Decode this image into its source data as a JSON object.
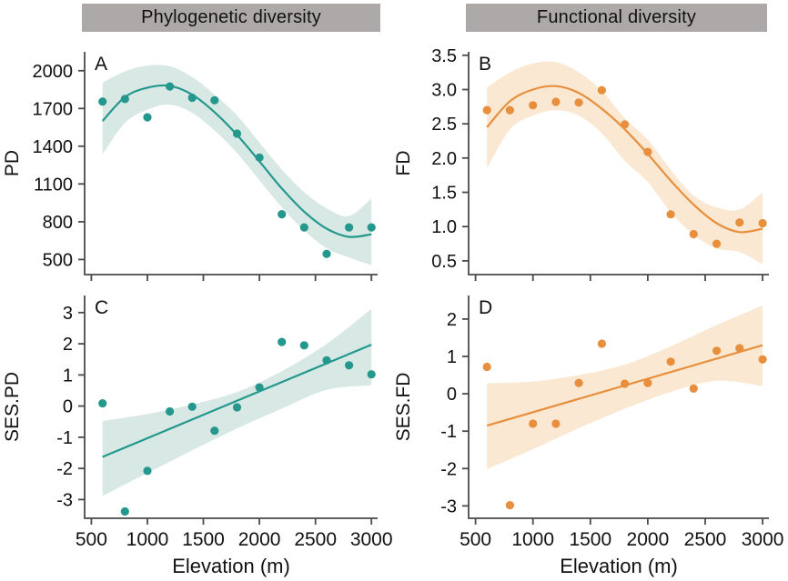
{
  "figure": {
    "headers": [
      {
        "label": "Phylogenetic diversity"
      },
      {
        "label": "Functional diversity"
      }
    ]
  },
  "colors": {
    "axis": "#4a4a4a",
    "text": "#111111",
    "header_bg": "#ada9a9",
    "header_text": "#111111",
    "background": "#ffffff",
    "teal": "#24988c",
    "teal_band": "#d8e8e5",
    "orange": "#e78f3c",
    "orange_band": "#fae8d2"
  },
  "chart_data": [
    {
      "id": "A",
      "type": "scatter",
      "panel_label": "A",
      "group": "Phylogenetic diversity",
      "ylabel": "PD",
      "xlabel": "",
      "color": "#24988c",
      "band_color": "#d8e8e5",
      "x": [
        600,
        800,
        1000,
        1200,
        1400,
        1600,
        1800,
        2000,
        2200,
        2400,
        2600,
        2800,
        3000
      ],
      "y": [
        1755,
        1775,
        1630,
        1875,
        1785,
        1765,
        1500,
        1310,
        860,
        755,
        545,
        755,
        755
      ],
      "fit_curve": {
        "x": [
          600,
          800,
          1000,
          1200,
          1400,
          1600,
          1800,
          2000,
          2200,
          2400,
          2600,
          2800,
          3000
        ],
        "y": [
          1600,
          1790,
          1865,
          1880,
          1810,
          1670,
          1490,
          1280,
          1065,
          880,
          745,
          680,
          700
        ]
      },
      "ci_band": {
        "x": [
          600,
          800,
          1000,
          1200,
          1400,
          1600,
          1800,
          2000,
          2200,
          2400,
          2600,
          2800,
          3000
        ],
        "lower": [
          1335,
          1585,
          1690,
          1730,
          1665,
          1525,
          1345,
          1130,
          915,
          730,
          590,
          515,
          455
        ],
        "upper": [
          1905,
          1995,
          2040,
          2035,
          1950,
          1810,
          1645,
          1430,
          1215,
          1035,
          905,
          845,
          985
        ]
      },
      "xlim": [
        440,
        3055
      ],
      "ylim": [
        380,
        2150
      ],
      "xticks": [
        500,
        1000,
        1500,
        2000,
        2500,
        3000
      ],
      "xtick_labels": null,
      "yticks": [
        500,
        800,
        1100,
        1400,
        1700,
        2000
      ],
      "ytick_labels": [
        "500",
        "800",
        "1100",
        "1400",
        "1700",
        "2000"
      ]
    },
    {
      "id": "B",
      "type": "scatter",
      "panel_label": "B",
      "group": "Functional diversity",
      "ylabel": "FD",
      "xlabel": "",
      "color": "#e78f3c",
      "band_color": "#fae8d2",
      "x": [
        600,
        800,
        1000,
        1200,
        1400,
        1600,
        1800,
        2000,
        2200,
        2400,
        2600,
        2800,
        3000
      ],
      "y": [
        2.7,
        2.7,
        2.77,
        2.82,
        2.81,
        2.99,
        2.49,
        2.09,
        1.18,
        0.89,
        0.75,
        1.06,
        1.05
      ],
      "fit_curve": {
        "x": [
          600,
          800,
          1000,
          1200,
          1400,
          1600,
          1800,
          2000,
          2200,
          2400,
          2600,
          2800,
          3000
        ],
        "y": [
          2.45,
          2.83,
          3.0,
          3.05,
          2.95,
          2.72,
          2.42,
          2.06,
          1.67,
          1.32,
          1.05,
          0.92,
          0.97
        ]
      },
      "ci_band": {
        "x": [
          600,
          800,
          1000,
          1200,
          1400,
          1600,
          1800,
          2000,
          2200,
          2400,
          2600,
          2800,
          3000
        ],
        "lower": [
          1.85,
          2.42,
          2.62,
          2.7,
          2.62,
          2.36,
          1.96,
          1.65,
          1.21,
          0.88,
          0.68,
          0.63,
          0.45
        ],
        "upper": [
          3.03,
          3.25,
          3.38,
          3.4,
          3.25,
          2.98,
          2.58,
          2.27,
          1.83,
          1.45,
          1.28,
          1.25,
          1.5
        ]
      },
      "xlim": [
        440,
        3055
      ],
      "ylim": [
        0.3,
        3.55
      ],
      "xticks": [
        500,
        1000,
        1500,
        2000,
        2500,
        3000
      ],
      "xtick_labels": null,
      "yticks": [
        0.5,
        1.0,
        1.5,
        2.0,
        2.5,
        3.0,
        3.5
      ],
      "ytick_labels": [
        "0.5",
        "1.0",
        "1.5",
        "2.0",
        "2.5",
        "3.0",
        "3.5"
      ]
    },
    {
      "id": "C",
      "type": "scatter",
      "panel_label": "C",
      "group": "Phylogenetic diversity",
      "ylabel": "SES.PD",
      "xlabel": "Elevation (m)",
      "color": "#24988c",
      "band_color": "#d8e8e5",
      "x": [
        600,
        800,
        1000,
        1200,
        1400,
        1600,
        1800,
        2000,
        2200,
        2400,
        2600,
        2800,
        3000
      ],
      "y": [
        0.09,
        -3.38,
        -2.08,
        -0.17,
        -0.02,
        -0.79,
        -0.04,
        0.6,
        2.06,
        1.95,
        1.47,
        1.31,
        1.02
      ],
      "fit_curve": {
        "x": [
          600,
          3000
        ],
        "y": [
          -1.63,
          1.97
        ]
      },
      "ci_band": {
        "x": [
          600,
          1000,
          1400,
          1800,
          2200,
          2600,
          3000
        ],
        "lower": [
          -2.88,
          -2.15,
          -1.42,
          -0.72,
          -0.08,
          0.52,
          0.67
        ],
        "upper": [
          -0.48,
          -0.25,
          0.05,
          0.45,
          1.12,
          2.0,
          3.12
        ]
      },
      "xlim": [
        440,
        3055
      ],
      "ylim": [
        -3.6,
        3.55
      ],
      "xticks": [
        500,
        1000,
        1500,
        2000,
        2500,
        3000
      ],
      "xtick_labels": [
        "500",
        "1000",
        "1500",
        "2000",
        "2500",
        "3000"
      ],
      "yticks": [
        -3,
        -2,
        -1,
        0,
        1,
        2,
        3
      ],
      "ytick_labels": [
        "-3",
        "-2",
        "-1",
        "0",
        "1",
        "2",
        "3"
      ]
    },
    {
      "id": "D",
      "type": "scatter",
      "panel_label": "D",
      "group": "Functional diversity",
      "ylabel": "SES.FD",
      "xlabel": "Elevation (m)",
      "color": "#e78f3c",
      "band_color": "#fae8d2",
      "x": [
        600,
        800,
        1000,
        1200,
        1400,
        1600,
        1800,
        2000,
        2200,
        2400,
        2600,
        2800,
        3000
      ],
      "y": [
        0.72,
        -2.98,
        -0.8,
        -0.8,
        0.29,
        1.34,
        0.27,
        0.29,
        0.86,
        0.14,
        1.15,
        1.22,
        0.92
      ],
      "fit_curve": {
        "x": [
          600,
          3000
        ],
        "y": [
          -0.85,
          1.3
        ]
      },
      "ci_band": {
        "x": [
          600,
          1000,
          1400,
          1800,
          2200,
          2600,
          3000
        ],
        "lower": [
          -2.02,
          -1.48,
          -0.92,
          -0.4,
          0.05,
          0.35,
          0.21
        ],
        "upper": [
          0.28,
          0.33,
          0.5,
          0.78,
          1.27,
          1.84,
          2.36
        ]
      },
      "xlim": [
        440,
        3055
      ],
      "ylim": [
        -3.33,
        2.63
      ],
      "xticks": [
        500,
        1000,
        1500,
        2000,
        2500,
        3000
      ],
      "xtick_labels": [
        "500",
        "1000",
        "1500",
        "2000",
        "2500",
        "3000"
      ],
      "yticks": [
        -3,
        -2,
        -1,
        0,
        1,
        2
      ],
      "ytick_labels": [
        "-3",
        "-2",
        "-1",
        "0",
        "1",
        "2"
      ]
    }
  ]
}
